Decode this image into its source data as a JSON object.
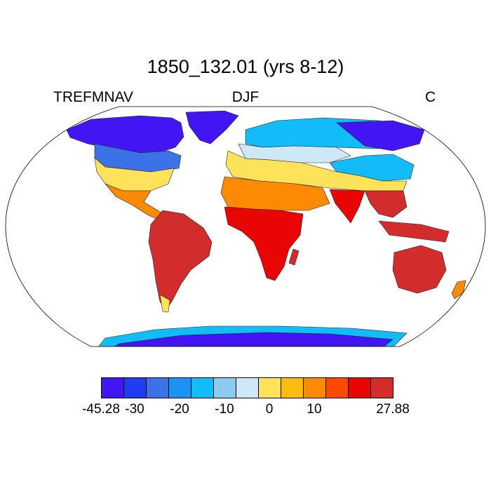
{
  "title": "1850_132.01 (yrs 8-12)",
  "variable": "TREFMNAV",
  "season": "DJF",
  "units": "C",
  "colorbar": {
    "min_label": "-45.28",
    "max_label": "27.88",
    "ticks": [
      {
        "label": "-45.28",
        "boundary": 0
      },
      {
        "label": "-30",
        "boundary": 1.5
      },
      {
        "label": "-20",
        "boundary": 3.5
      },
      {
        "label": "-10",
        "boundary": 5.5
      },
      {
        "label": "0",
        "boundary": 7.5
      },
      {
        "label": "10",
        "boundary": 9.5
      },
      {
        "label": "27.88",
        "boundary": 13
      }
    ],
    "colors": [
      "#4116f2",
      "#1e3ef0",
      "#3b72e7",
      "#1d92f5",
      "#12bcf6",
      "#8ccaef",
      "#cfe8f7",
      "#fee35a",
      "#fdbb12",
      "#fd8a03",
      "#fc4a01",
      "#e80504",
      "#d22c2c"
    ]
  },
  "map": {
    "projection": "Robinson",
    "land_colors": {
      "polar": "#4116f2",
      "cold": "#3b72e7",
      "cool": "#12bcf6",
      "mild": "#cfe8f7",
      "temperate": "#fee35a",
      "warm": "#fd8a03",
      "hot": "#e80504",
      "tropical": "#d22c2c"
    }
  }
}
